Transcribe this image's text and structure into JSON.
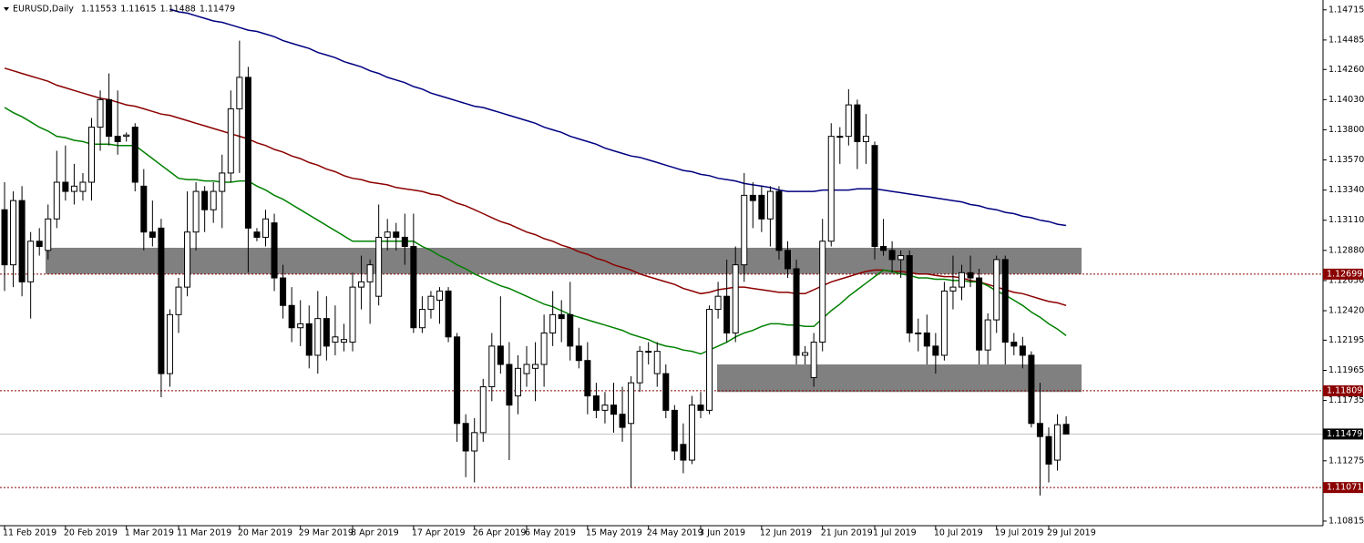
{
  "chart_data": {
    "type": "candlestick",
    "title": "EURUSD,Daily",
    "categories": [
      "11 Feb 2019",
      null,
      null,
      null,
      null,
      null,
      null,
      "20 Feb 2019",
      null,
      null,
      null,
      null,
      null,
      null,
      "1 Mar 2019",
      null,
      null,
      null,
      null,
      null,
      "11 Mar 2019",
      null,
      null,
      null,
      null,
      null,
      null,
      "20 Mar 2019",
      null,
      null,
      null,
      null,
      null,
      null,
      "29 Mar 2019",
      null,
      null,
      null,
      null,
      null,
      "8 Apr 2019",
      null,
      null,
      null,
      null,
      null,
      null,
      "17 Apr 2019",
      null,
      null,
      null,
      null,
      null,
      null,
      "26 Apr 2019",
      null,
      null,
      null,
      null,
      null,
      "6 May 2019",
      null,
      null,
      null,
      null,
      null,
      null,
      "15 May 2019",
      null,
      null,
      null,
      null,
      null,
      null,
      "24 May 2019",
      null,
      null,
      null,
      null,
      null,
      "3 Jun 2019",
      null,
      null,
      null,
      null,
      null,
      null,
      "12 Jun 2019",
      null,
      null,
      null,
      null,
      null,
      null,
      "21 Jun 2019",
      null,
      null,
      null,
      null,
      null,
      "1 Jul 2019",
      null,
      null,
      null,
      null,
      null,
      null,
      "10 Jul 2019",
      null,
      null,
      null,
      null,
      null,
      null,
      "19 Jul 2019",
      null,
      null,
      null,
      null,
      null,
      "29 Jul 2019",
      null,
      null
    ],
    "open": [
      1.1319,
      1.1277,
      1.1326,
      1.1264,
      1.1295,
      1.1288,
      1.1312,
      1.134,
      1.1333,
      1.1333,
      1.134,
      1.1382,
      1.1403,
      1.1375,
      1.1375,
      1.1382,
      1.1337,
      1.1302,
      1.1305,
      1.1194,
      1.1239,
      1.126,
      1.1302,
      1.1333,
      1.1319,
      1.1333,
      1.1347,
      1.1396,
      1.142,
      1.1302,
      1.1298,
      1.1309,
      1.1267,
      1.1246,
      1.1229,
      1.1232,
      1.1208,
      1.1236,
      1.1218,
      1.1218,
      1.1218,
      1.126,
      1.1264,
      1.1253,
      1.1298,
      1.1302,
      1.1298,
      1.1291,
      1.1229,
      1.1243,
      1.125,
      1.1257,
      1.1222,
      1.1156,
      1.1135,
      1.1149,
      1.1184,
      1.1215,
      1.1201,
      1.1177,
      1.1194,
      1.1198,
      1.1201,
      1.1225,
      1.1239,
      1.1239,
      1.1215,
      1.1204,
      1.1177,
      1.1166,
      1.117,
      1.1163,
      1.1156,
      1.1187,
      1.1211,
      1.1194,
      1.1194,
      1.1166,
      1.114,
      1.1128,
      1.117,
      1.1166,
      1.1243,
      1.1253,
      1.1225,
      1.1277,
      1.133,
      1.133,
      1.1312,
      1.1333,
      1.1288,
      1.1274,
      1.1208,
      1.1191,
      1.1218,
      1.1295,
      1.1375,
      1.1375,
      1.1399,
      1.1371,
      1.1368,
      1.1291,
      1.1288,
      1.1281,
      1.1284,
      1.1225,
      1.1225,
      1.1215,
      1.1208,
      1.1257,
      1.126,
      1.1271,
      1.1267,
      1.1212,
      1.1235,
      1.1281,
      1.1218,
      1.1215,
      1.1208,
      1.1156,
      1.1146,
      1.1128,
      1.11553
    ],
    "high": [
      1.134,
      1.1333,
      1.1337,
      1.1302,
      1.1305,
      1.1323,
      1.1364,
      1.1368,
      1.1354,
      1.1347,
      1.1389,
      1.141,
      1.1423,
      1.141,
      1.1378,
      1.1385,
      1.135,
      1.1326,
      1.1312,
      1.1243,
      1.1267,
      1.1333,
      1.134,
      1.1337,
      1.134,
      1.1361,
      1.141,
      1.1448,
      1.1428,
      1.1305,
      1.1319,
      1.1316,
      1.1277,
      1.126,
      1.125,
      1.1246,
      1.1257,
      1.1253,
      1.1246,
      1.1232,
      1.1271,
      1.1284,
      1.1281,
      1.1323,
      1.1312,
      1.1309,
      1.1316,
      1.1316,
      1.1253,
      1.1257,
      1.126,
      1.126,
      1.1225,
      1.1163,
      1.116,
      1.119,
      1.1225,
      1.1253,
      1.1218,
      1.1208,
      1.1215,
      1.1218,
      1.1239,
      1.1257,
      1.125,
      1.1264,
      1.1229,
      1.1218,
      1.1187,
      1.118,
      1.1187,
      1.1184,
      1.1192,
      1.1215,
      1.1218,
      1.1218,
      1.1201,
      1.117,
      1.1156,
      1.1177,
      1.118,
      1.1246,
      1.1264,
      1.1281,
      1.1291,
      1.1347,
      1.134,
      1.1337,
      1.1337,
      1.1337,
      1.1295,
      1.1281,
      1.1215,
      1.1225,
      1.1312,
      1.1385,
      1.1382,
      1.1411,
      1.1403,
      1.1392,
      1.1371,
      1.1312,
      1.1295,
      1.1288,
      1.1288,
      1.1236,
      1.1239,
      1.1225,
      1.1264,
      1.1284,
      1.1277,
      1.1284,
      1.1274,
      1.124,
      1.1284,
      1.1284,
      1.1225,
      1.1222,
      1.1211,
      1.1187,
      1.1153,
      1.1163,
      1.11615
    ],
    "low": [
      1.1257,
      1.126,
      1.1253,
      1.1236,
      1.1284,
      1.1281,
      1.1305,
      1.1326,
      1.1323,
      1.1326,
      1.1326,
      1.1364,
      1.1368,
      1.1361,
      1.1371,
      1.1333,
      1.1288,
      1.1291,
      1.1176,
      1.1184,
      1.1225,
      1.1253,
      1.1288,
      1.1302,
      1.1309,
      1.1305,
      1.134,
      1.1347,
      1.1271,
      1.1295,
      1.1291,
      1.1257,
      1.1236,
      1.1218,
      1.1215,
      1.1198,
      1.1194,
      1.1204,
      1.1208,
      1.1211,
      1.1211,
      1.1243,
      1.1232,
      1.1246,
      1.1288,
      1.1288,
      1.1277,
      1.1225,
      1.1225,
      1.1236,
      1.1232,
      1.1218,
      1.1142,
      1.1115,
      1.1111,
      1.1142,
      1.1173,
      1.1194,
      1.1128,
      1.1163,
      1.1184,
      1.1173,
      1.1184,
      1.1215,
      1.1218,
      1.1204,
      1.1198,
      1.1163,
      1.116,
      1.1156,
      1.1149,
      1.1142,
      1.1107,
      1.118,
      1.1201,
      1.1184,
      1.116,
      1.1128,
      1.1118,
      1.1125,
      1.116,
      1.1163,
      1.1236,
      1.1218,
      1.1218,
      1.1264,
      1.1305,
      1.1302,
      1.1291,
      1.1281,
      1.1267,
      1.1201,
      1.1201,
      1.1184,
      1.1211,
      1.1291,
      1.1354,
      1.1368,
      1.135,
      1.1354,
      1.1281,
      1.1284,
      1.1271,
      1.1267,
      1.1218,
      1.1211,
      1.1201,
      1.1194,
      1.1204,
      1.1243,
      1.125,
      1.126,
      1.1201,
      1.1201,
      1.1225,
      1.1201,
      1.1208,
      1.1198,
      1.1153,
      1.1101,
      1.1111,
      1.112,
      1.11488
    ],
    "close": [
      1.1277,
      1.1326,
      1.1264,
      1.1295,
      1.1291,
      1.1312,
      1.134,
      1.1333,
      1.1337,
      1.134,
      1.1382,
      1.1403,
      1.1375,
      1.1371,
      1.1376,
      1.134,
      1.1302,
      1.1298,
      1.1194,
      1.1239,
      1.126,
      1.1302,
      1.1333,
      1.1319,
      1.1333,
      1.1347,
      1.1396,
      1.142,
      1.1305,
      1.1298,
      1.1312,
      1.1267,
      1.1246,
      1.1229,
      1.1232,
      1.1208,
      1.1236,
      1.1215,
      1.1222,
      1.122,
      1.126,
      1.1264,
      1.1277,
      1.1298,
      1.1302,
      1.1298,
      1.1291,
      1.1229,
      1.1243,
      1.1253,
      1.1257,
      1.1222,
      1.1156,
      1.1135,
      1.1149,
      1.1184,
      1.1215,
      1.1201,
      1.117,
      1.1198,
      1.1201,
      1.1201,
      1.1225,
      1.1239,
      1.1236,
      1.1215,
      1.1204,
      1.1177,
      1.1166,
      1.117,
      1.1163,
      1.1153,
      1.1187,
      1.1211,
      1.1211,
      1.1211,
      1.1166,
      1.1135,
      1.1128,
      1.117,
      1.1166,
      1.1243,
      1.1253,
      1.1225,
      1.1277,
      1.133,
      1.1326,
      1.1312,
      1.1333,
      1.1288,
      1.1274,
      1.1208,
      1.121,
      1.1218,
      1.1295,
      1.1375,
      1.1375,
      1.1399,
      1.1371,
      1.1375,
      1.1291,
      1.1288,
      1.1281,
      1.1284,
      1.1225,
      1.1225,
      1.1215,
      1.1208,
      1.1257,
      1.126,
      1.1271,
      1.1267,
      1.1212,
      1.1235,
      1.1281,
      1.1218,
      1.1215,
      1.1208,
      1.1156,
      1.1146,
      1.1125,
      1.1155,
      1.11479
    ],
    "up_color": "#ffffff",
    "down_color": "#000000",
    "series": [
      {
        "color": "#000080",
        "values": [
          null,
          null,
          null,
          null,
          null,
          null,
          null,
          null,
          null,
          null,
          null,
          null,
          null,
          null,
          null,
          null,
          null,
          null,
          null,
          1.1472,
          1.147,
          1.1469,
          1.1467,
          1.1465,
          1.1463,
          1.1462,
          1.146,
          1.1458,
          1.1456,
          1.1455,
          1.1453,
          1.1451,
          1.1448,
          1.1446,
          1.1444,
          1.1442,
          1.1439,
          1.1437,
          1.1435,
          1.1432,
          1.143,
          1.1428,
          1.1425,
          1.1423,
          1.142,
          1.1418,
          1.1416,
          1.1413,
          1.1411,
          1.1408,
          1.1406,
          1.1404,
          1.1402,
          1.14,
          1.1398,
          1.1397,
          1.1395,
          1.1393,
          1.1391,
          1.1389,
          1.1387,
          1.1385,
          1.1382,
          1.138,
          1.1378,
          1.1375,
          1.1373,
          1.1371,
          1.1369,
          1.1366,
          1.1364,
          1.1362,
          1.136,
          1.1359,
          1.1357,
          1.1355,
          1.1353,
          1.1351,
          1.1349,
          1.1348,
          1.1346,
          1.1345,
          1.1343,
          1.1342,
          1.1341,
          1.1339,
          1.1338,
          1.1337,
          1.1336,
          1.1334,
          1.1333,
          1.1333,
          1.1333,
          1.1333,
          1.1334,
          1.1334,
          1.1334,
          1.1334,
          1.1335,
          1.1335,
          1.1335,
          1.1334,
          1.1333,
          1.1332,
          1.1331,
          1.133,
          1.1329,
          1.1328,
          1.1327,
          1.1326,
          1.1325,
          1.1323,
          1.1322,
          1.132,
          1.1319,
          1.1317,
          1.1316,
          1.1314,
          1.1313,
          1.1311,
          1.131,
          1.1308,
          1.1307
        ]
      },
      {
        "color": "#8b0000",
        "values": [
          1.1427,
          1.1425,
          1.1423,
          1.1421,
          1.1419,
          1.1417,
          1.1414,
          1.1412,
          1.141,
          1.1408,
          1.1406,
          1.1404,
          1.1403,
          1.1401,
          1.1399,
          1.1398,
          1.1396,
          1.1394,
          1.1392,
          1.1391,
          1.1389,
          1.1387,
          1.1385,
          1.1383,
          1.1381,
          1.1379,
          1.1377,
          1.1375,
          1.1373,
          1.137,
          1.1368,
          1.1365,
          1.1363,
          1.136,
          1.1358,
          1.1355,
          1.1353,
          1.135,
          1.1348,
          1.1345,
          1.1343,
          1.1342,
          1.134,
          1.1339,
          1.1338,
          1.1336,
          1.1335,
          1.1334,
          1.1333,
          1.1331,
          1.133,
          1.1327,
          1.1324,
          1.1322,
          1.1319,
          1.1316,
          1.1313,
          1.131,
          1.1308,
          1.1305,
          1.1302,
          1.13,
          1.1297,
          1.1295,
          1.1292,
          1.129,
          1.1287,
          1.1285,
          1.1282,
          1.128,
          1.1277,
          1.1275,
          1.1273,
          1.127,
          1.1268,
          1.1266,
          1.1264,
          1.1262,
          1.1259,
          1.1257,
          1.1255,
          1.1256,
          1.1258,
          1.1259,
          1.126,
          1.126,
          1.1259,
          1.1258,
          1.1257,
          1.1256,
          1.1256,
          1.1255,
          1.1255,
          1.1258,
          1.1261,
          1.1264,
          1.1266,
          1.1268,
          1.127,
          1.1272,
          1.1273,
          1.1273,
          1.1272,
          1.1272,
          1.1271,
          1.127,
          1.127,
          1.1269,
          1.1268,
          1.1268,
          1.1267,
          1.1265,
          1.1264,
          1.1262,
          1.126,
          1.1258,
          1.1256,
          1.1255,
          1.1253,
          1.1251,
          1.1249,
          1.1248,
          1.1246
        ]
      },
      {
        "color": "#008000",
        "values": [
          1.1397,
          1.1393,
          1.139,
          1.1386,
          1.1382,
          1.1379,
          1.1375,
          1.1374,
          1.1372,
          1.1371,
          1.1369,
          1.1369,
          1.1369,
          1.1368,
          1.1368,
          1.1368,
          1.1363,
          1.1358,
          1.1353,
          1.1348,
          1.1343,
          1.1342,
          1.1342,
          1.1341,
          1.1341,
          1.134,
          1.134,
          1.1341,
          1.1341,
          1.1337,
          1.1334,
          1.133,
          1.1327,
          1.1323,
          1.1319,
          1.1315,
          1.1311,
          1.1307,
          1.1303,
          1.1299,
          1.1295,
          1.1295,
          1.1295,
          1.1295,
          1.1295,
          1.1295,
          1.1295,
          1.1295,
          1.1291,
          1.1288,
          1.1284,
          1.1281,
          1.1277,
          1.1274,
          1.127,
          1.1267,
          1.1264,
          1.1261,
          1.1259,
          1.1256,
          1.1253,
          1.125,
          1.1247,
          1.1245,
          1.1242,
          1.1239,
          1.1237,
          1.1235,
          1.1233,
          1.1231,
          1.1229,
          1.1227,
          1.1224,
          1.1222,
          1.122,
          1.1217,
          1.1215,
          1.1214,
          1.1212,
          1.1211,
          1.1209,
          1.1212,
          1.1215,
          1.1218,
          1.1222,
          1.1225,
          1.1227,
          1.123,
          1.1232,
          1.1232,
          1.1231,
          1.1231,
          1.123,
          1.123,
          1.1236,
          1.1242,
          1.1247,
          1.1253,
          1.1258,
          1.1263,
          1.1268,
          1.1273,
          1.1272,
          1.127,
          1.1269,
          1.1267,
          1.1267,
          1.1266,
          1.1266,
          1.1265,
          1.1265,
          1.1264,
          1.1264,
          1.1261,
          1.1257,
          1.1254,
          1.125,
          1.1246,
          1.1241,
          1.1237,
          1.1232,
          1.1228,
          1.1223
        ]
      }
    ],
    "zones": [
      {
        "low": 1.127,
        "high": 1.129,
        "color": "#808080"
      },
      {
        "low": 1.118,
        "high": 1.1201,
        "color": "#808080"
      }
    ],
    "levels": [
      {
        "value": 1.12699,
        "color": "#8b0000",
        "style": "dotted"
      },
      {
        "value": 1.11809,
        "color": "#8b0000",
        "style": "dotted"
      },
      {
        "value": 1.11071,
        "color": "#8b0000",
        "style": "dotted"
      },
      {
        "value": 1.11479,
        "color": "#000000",
        "style": "current"
      }
    ],
    "ylim": [
      1.1078,
      1.1479
    ],
    "yticks": [
      1.14715,
      1.14485,
      {
        "value": 1.1426,
        "label": "1.14260"
      },
      {
        "value": 1.1403,
        "label": "1.14030"
      },
      {
        "value": 1.138,
        "label": "1.13800"
      },
      {
        "value": 1.1357,
        "label": "1.13570"
      },
      {
        "value": 1.1334,
        "label": "1.13340"
      },
      {
        "value": 1.1311,
        "label": "1.13110"
      },
      {
        "value": 1.1288,
        "label": "1.12880"
      },
      {
        "value": 1.1265,
        "label": "1.12650"
      },
      {
        "value": 1.1242,
        "label": "1.12420"
      },
      1.12195,
      1.11965,
      1.11735,
      1.11275,
      1.10815
    ]
  }
}
